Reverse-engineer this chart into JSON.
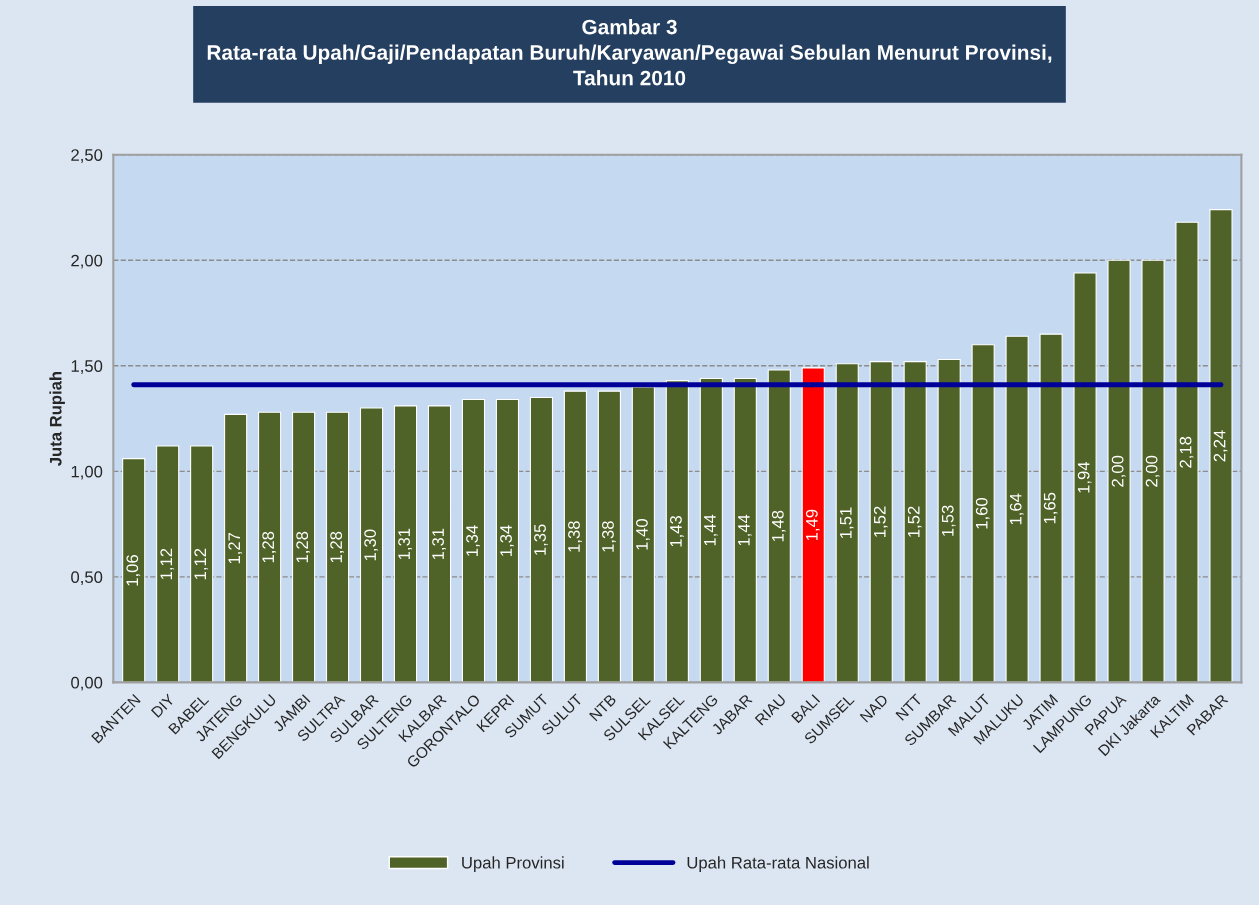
{
  "chart_data": {
    "type": "bar",
    "title": "Gambar 3\nRata-rata Upah/Gaji/Pendapatan Buruh/Karyawan/Pegawai Sebulan Menurut Provinsi,\nTahun 2010",
    "ylabel": "Juta Rupiah",
    "categories": [
      "BANTEN",
      "DIY",
      "BABEL",
      "JATENG",
      "BENGKULU",
      "JAMBI",
      "SULTRA",
      "SULBAR",
      "SULTENG",
      "KALBAR",
      "GORONTALO",
      "KEPRI",
      "SUMUT",
      "SULUT",
      "NTB",
      "SULSEL",
      "KALSEL",
      "KALTENG",
      "JABAR",
      "RIAU",
      "BALI",
      "SUMSEL",
      "NAD",
      "NTT",
      "SUMBAR",
      "MALUT",
      "MALUKU",
      "JATIM",
      "LAMPUNG",
      "PAPUA",
      "DKI Jakarta",
      "KALTIM",
      "PABAR"
    ],
    "series": [
      {
        "name": "Upah Provinsi",
        "color": "#4f6228",
        "colors": [
          "#4f6228",
          "#4f6228",
          "#4f6228",
          "#4f6228",
          "#4f6228",
          "#4f6228",
          "#4f6228",
          "#4f6228",
          "#4f6228",
          "#4f6228",
          "#4f6228",
          "#4f6228",
          "#4f6228",
          "#4f6228",
          "#4f6228",
          "#4f6228",
          "#4f6228",
          "#4f6228",
          "#4f6228",
          "#4f6228",
          "#ff0000",
          "#4f6228",
          "#4f6228",
          "#4f6228",
          "#4f6228",
          "#4f6228",
          "#4f6228",
          "#4f6228",
          "#4f6228",
          "#4f6228",
          "#4f6228",
          "#4f6228",
          "#4f6228"
        ],
        "values": [
          1.06,
          1.12,
          1.12,
          1.27,
          1.28,
          1.28,
          1.28,
          1.3,
          1.31,
          1.31,
          1.34,
          1.34,
          1.35,
          1.38,
          1.38,
          1.4,
          1.43,
          1.44,
          1.44,
          1.48,
          1.49,
          1.51,
          1.52,
          1.52,
          1.53,
          1.6,
          1.64,
          1.65,
          1.94,
          2.0,
          2.0,
          2.18,
          2.24
        ],
        "value_labels": [
          "1,06",
          "1,12",
          "1,12",
          "1,27",
          "1,28",
          "1,28",
          "1,28",
          "1,30",
          "1,31",
          "1,31",
          "1,34",
          "1,34",
          "1,35",
          "1,38",
          "1,38",
          "1,40",
          "1,43",
          "1,44",
          "1,44",
          "1,48",
          "1,49",
          "1,51",
          "1,52",
          "1,52",
          "1,53",
          "1,60",
          "1,64",
          "1,65",
          "1,94",
          "2,00",
          "2,00",
          "2,18",
          "2,24"
        ]
      },
      {
        "name": "Upah Rata-rata Nasional",
        "type": "line",
        "color": "#000099",
        "values": [
          1.41,
          1.41,
          1.41,
          1.41,
          1.41,
          1.41,
          1.41,
          1.41,
          1.41,
          1.41,
          1.41,
          1.41,
          1.41,
          1.41,
          1.41,
          1.41,
          1.41,
          1.41,
          1.41,
          1.41,
          1.41,
          1.41,
          1.41,
          1.41,
          1.41,
          1.41,
          1.41,
          1.41,
          1.41,
          1.41,
          1.41,
          1.41,
          1.41
        ]
      }
    ],
    "ylim": [
      0,
      2.5
    ],
    "yticks": [
      {
        "value": 0,
        "label": "0,00"
      },
      {
        "value": 0.5,
        "label": "0,50"
      },
      {
        "value": 1.0,
        "label": "1,00"
      },
      {
        "value": 1.5,
        "label": "1,50"
      },
      {
        "value": 2.0,
        "label": "2,00"
      },
      {
        "value": 2.5,
        "label": "2,50"
      }
    ],
    "grid": "y",
    "legend": "bottom",
    "marker": "none",
    "line_style": "solid"
  }
}
